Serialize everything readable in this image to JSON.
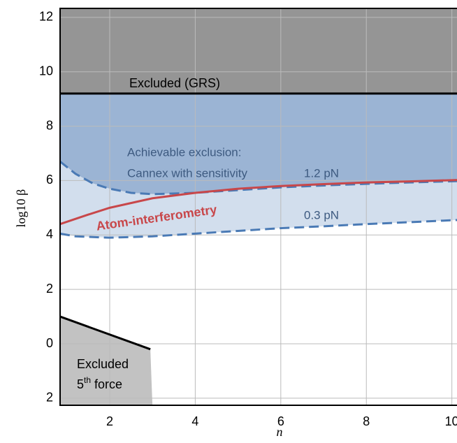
{
  "chart_data": {
    "type": "line",
    "xlabel": "n",
    "ylabel": "log10 β",
    "xlim": [
      0.84,
      10.12
    ],
    "ylim": [
      -2.26,
      12.33
    ],
    "xticks": [
      2,
      4,
      6,
      8,
      10
    ],
    "yticks": [
      12,
      10,
      8,
      6,
      4,
      2,
      0,
      {
        "value": -2,
        "label": "2"
      }
    ],
    "grid": true,
    "region_colors": {
      "grs": "#959595",
      "cannex_strong": "#9bb4d4",
      "cannex_weak": "#d2deed",
      "fifth_force": "#c2c2c2"
    },
    "series": [
      {
        "name": "Excluded (GRS)",
        "color": "#000000",
        "dashed": false,
        "x": [
          0.84,
          10.12
        ],
        "values": [
          9.2,
          9.2
        ]
      },
      {
        "name": "1.2 pN",
        "color": "#4a7ab5",
        "dashed": true,
        "x": [
          0.84,
          1.2,
          1.6,
          2,
          2.5,
          3,
          4,
          5,
          6,
          7,
          8,
          9,
          10.12
        ],
        "values": [
          6.7,
          6.25,
          5.9,
          5.7,
          5.55,
          5.5,
          5.55,
          5.65,
          5.75,
          5.82,
          5.88,
          5.93,
          5.98
        ]
      },
      {
        "name": "0.3 pN",
        "color": "#4a7ab5",
        "dashed": true,
        "x": [
          0.84,
          1.2,
          2,
          3,
          4,
          5,
          6,
          7,
          8,
          9,
          10.12
        ],
        "values": [
          4.05,
          3.95,
          3.9,
          3.95,
          4.05,
          4.15,
          4.25,
          4.32,
          4.4,
          4.47,
          4.55
        ]
      },
      {
        "name": "Atom-interferometry",
        "color": "#c8474a",
        "dashed": false,
        "x": [
          0.84,
          1.5,
          2,
          3,
          4,
          5,
          6,
          7,
          8,
          9,
          10.12
        ],
        "values": [
          4.4,
          4.75,
          5.0,
          5.35,
          5.55,
          5.7,
          5.8,
          5.87,
          5.93,
          5.97,
          6.02
        ]
      },
      {
        "color": "#000000",
        "dashed": false,
        "x": [
          0.84,
          2.95
        ],
        "values": [
          1.0,
          -0.2
        ]
      }
    ],
    "annotations": {
      "achievable": "Achievable exclusion:",
      "cannex": "Cannex with sensitivity",
      "excluded": "Excluded",
      "fifth_number": "5",
      "fifth_sup": "th",
      "fifth_rest": " force"
    }
  }
}
